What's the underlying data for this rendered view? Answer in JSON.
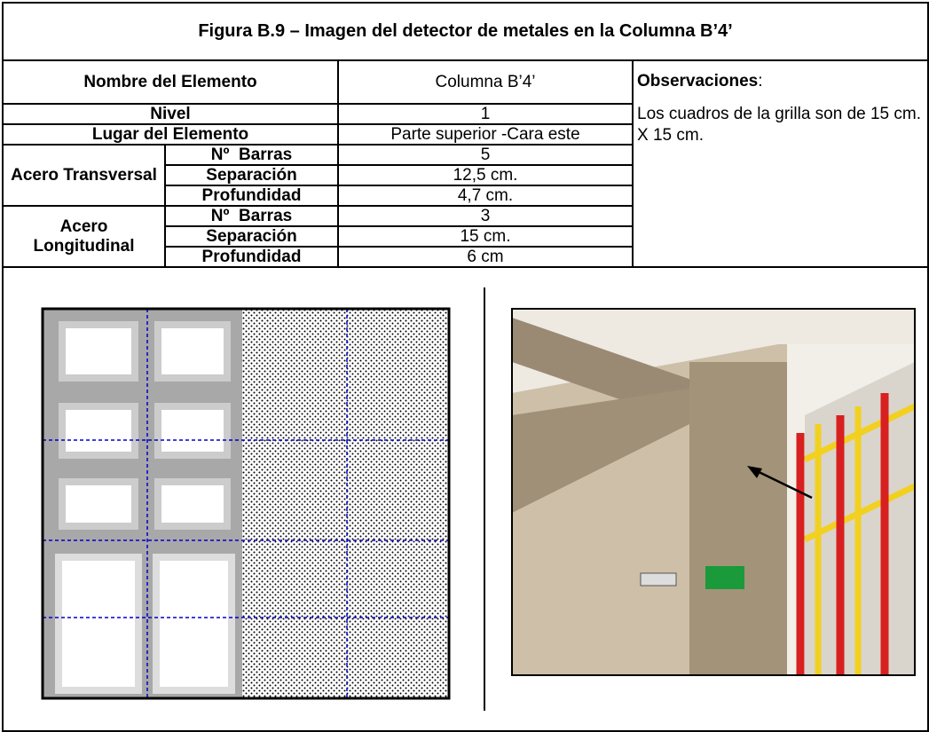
{
  "title": "Figura B.9 – Imagen del detector de metales en la Columna B’4’",
  "header": {
    "label": "Nombre del Elemento",
    "value": "Columna B’4’"
  },
  "observations": {
    "label": "Observaciones",
    "colon": ":",
    "text": "Los cuadros de la grilla son de 15 cm. X 15 cm."
  },
  "rows": [
    {
      "label": "Nivel",
      "value": "1"
    },
    {
      "label": "Lugar del Elemento",
      "value": "Parte superior -Cara este"
    }
  ],
  "groups": [
    {
      "label": "Acero Transversal",
      "rows": [
        {
          "label": "Nº  Barras",
          "value": "5"
        },
        {
          "label": "Separación",
          "value": "12,5 cm."
        },
        {
          "label": "Profundidad",
          "value": "4,7 cm."
        }
      ]
    },
    {
      "label": "Acero Longitudinal",
      "rows": [
        {
          "label": "Nº  Barras",
          "value": "3"
        },
        {
          "label": "Separación",
          "value": "15 cm."
        },
        {
          "label": "Profundidad",
          "value": "6 cm"
        }
      ]
    }
  ]
}
